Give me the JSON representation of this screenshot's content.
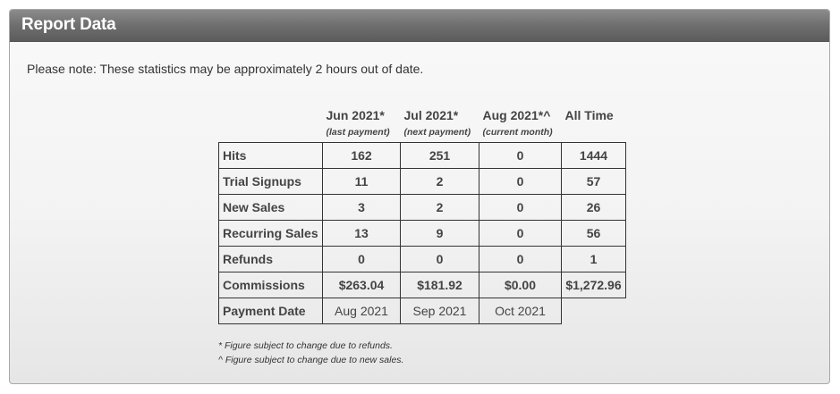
{
  "panel": {
    "title": "Report Data"
  },
  "note": "Please note: These statistics may be approximately 2 hours out of date.",
  "table": {
    "columns": [
      {
        "label": "Jun 2021*",
        "sub": "(last payment)"
      },
      {
        "label": "Jul 2021*",
        "sub": "(next payment)"
      },
      {
        "label": "Aug 2021*^",
        "sub": "(current month)"
      },
      {
        "label": "All Time",
        "sub": ""
      }
    ],
    "rows": [
      {
        "label": "Hits",
        "values": [
          "162",
          "251",
          "0",
          "1444"
        ]
      },
      {
        "label": "Trial Signups",
        "values": [
          "11",
          "2",
          "0",
          "57"
        ]
      },
      {
        "label": "New Sales",
        "values": [
          "3",
          "2",
          "0",
          "26"
        ]
      },
      {
        "label": "Recurring Sales",
        "values": [
          "13",
          "9",
          "0",
          "56"
        ]
      },
      {
        "label": "Refunds",
        "values": [
          "0",
          "0",
          "0",
          "1"
        ]
      },
      {
        "label": "Commissions",
        "values": [
          "$263.04",
          "$181.92",
          "$0.00",
          "$1,272.96"
        ]
      },
      {
        "label": "Payment Date",
        "values": [
          "Aug 2021",
          "Sep 2021",
          "Oct 2021"
        ]
      }
    ]
  },
  "footnotes": [
    "* Figure subject to change due to refunds.",
    "^ Figure subject to change due to new sales."
  ]
}
